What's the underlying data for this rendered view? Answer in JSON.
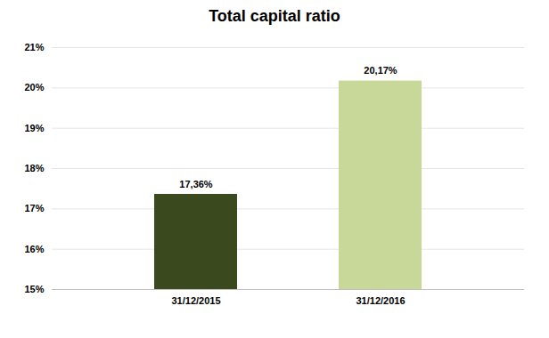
{
  "chart_data": {
    "type": "bar",
    "title": "Total capital ratio",
    "categories": [
      "31/12/2015",
      "31/12/2016"
    ],
    "values": [
      17.36,
      20.17
    ],
    "value_labels": [
      "17,36%",
      "20,17%"
    ],
    "colors": [
      "#3b4a1e",
      "#c8d898"
    ],
    "ylim": [
      15,
      21
    ],
    "yticks": [
      {
        "value": 15,
        "label": "15%"
      },
      {
        "value": 16,
        "label": "16%"
      },
      {
        "value": 17,
        "label": "17%"
      },
      {
        "value": 18,
        "label": "18%"
      },
      {
        "value": 19,
        "label": "19%"
      },
      {
        "value": 20,
        "label": "20%"
      },
      {
        "value": 21,
        "label": "21%"
      }
    ],
    "grid": true,
    "data_labels": true
  }
}
